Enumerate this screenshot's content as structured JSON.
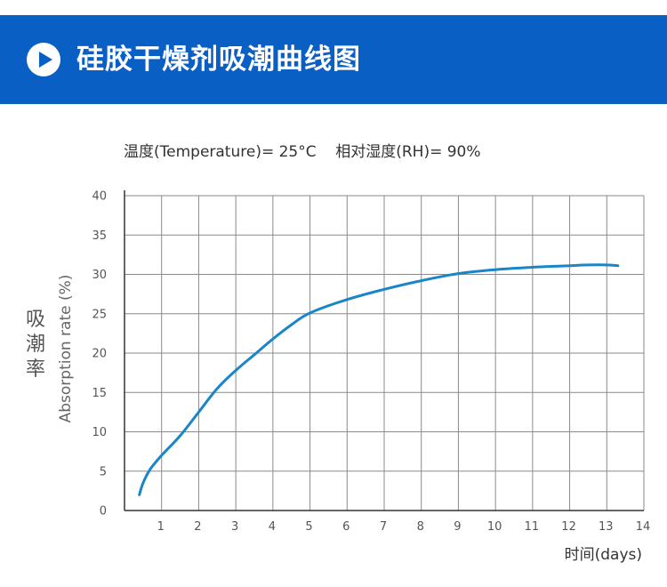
{
  "header": {
    "title": "硅胶干燥剂吸潮曲线图",
    "bg_color": "#0a5fc4",
    "icon": "play-circle-icon"
  },
  "conditions": {
    "temperature": "温度(Temperature)= 25°C",
    "humidity": "相对湿度(RH)= 90%"
  },
  "chart_data": {
    "type": "line",
    "ylabel_cn": "吸潮率",
    "ylabel_en": "Absorption rate (%)",
    "xlabel": "时间(days)",
    "xlim": [
      0,
      14
    ],
    "ylim": [
      0,
      40
    ],
    "x_ticks": [
      1,
      2,
      3,
      4,
      5,
      6,
      7,
      8,
      9,
      10,
      11,
      12,
      13,
      14
    ],
    "y_ticks": [
      0,
      5,
      10,
      15,
      20,
      25,
      30,
      35,
      40
    ],
    "grid": true,
    "line_color": "#1a86c8",
    "series": [
      {
        "x": [
          0.4,
          0.5,
          0.7,
          1.0,
          1.5,
          2.0,
          2.5,
          3.0,
          3.5,
          4.0,
          4.5,
          5.0,
          6.0,
          7.0,
          8.0,
          9.0,
          10.0,
          11.0,
          12.0,
          12.5,
          13.0,
          13.3
        ],
        "values": [
          2,
          3.5,
          5.3,
          7,
          9.5,
          12.5,
          15.5,
          17.8,
          19.8,
          21.8,
          23.6,
          25.1,
          26.8,
          28.1,
          29.2,
          30.1,
          30.6,
          30.9,
          31.1,
          31.2,
          31.2,
          31.1
        ]
      }
    ]
  }
}
